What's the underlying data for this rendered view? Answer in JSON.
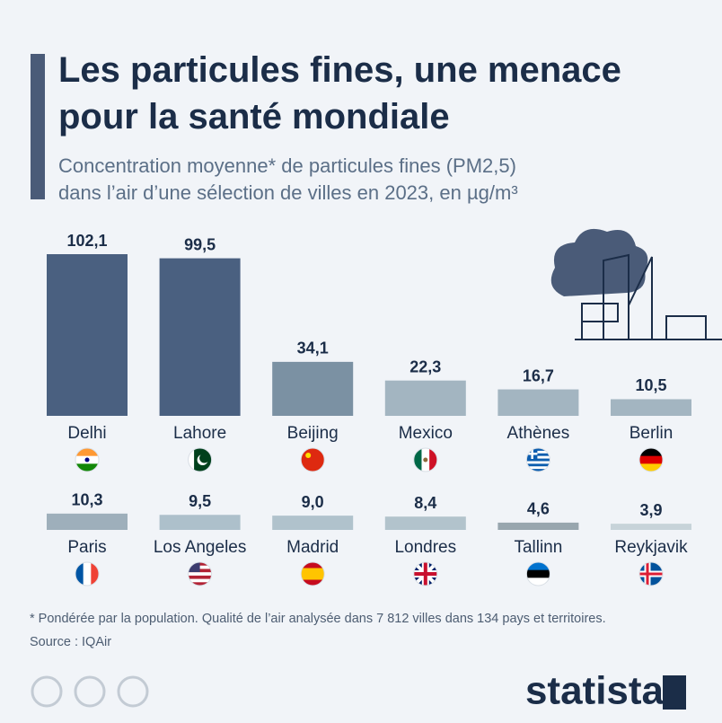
{
  "chart_data": {
    "type": "bar",
    "title": [
      "Les particules fines, une menace",
      "pour la santé mondiale"
    ],
    "subtitle": [
      "Concentration moyenne* de particules fines (PM2,5)",
      "dans l’air d’une sélection de villes en 2023, en µg/m³"
    ],
    "categories": [
      "Delhi",
      "Lahore",
      "Beijing",
      "Mexico",
      "Athènes",
      "Berlin",
      "Paris",
      "Los Angeles",
      "Madrid",
      "Londres",
      "Tallinn",
      "Reykjavik"
    ],
    "values": [
      102.1,
      99.5,
      34.1,
      22.3,
      16.7,
      10.5,
      10.3,
      9.5,
      9.0,
      8.4,
      4.6,
      3.9
    ],
    "value_labels": [
      "102,1",
      "99,5",
      "34,1",
      "22,3",
      "16,7",
      "10,5",
      "10,3",
      "9,5",
      "9,0",
      "8,4",
      "4,6",
      "3,9"
    ],
    "colors": [
      "#4a6080",
      "#4a6080",
      "#7b91a3",
      "#a3b5c1",
      "#a3b5c1",
      "#a3b5c1",
      "#9eafbb",
      "#adc0cb",
      "#b0c2cc",
      "#b2c3cc",
      "#98a6ae",
      "#c7d3d9"
    ],
    "footnote": "* Pondérée par la population. Qualité de l’air analysée dans 7 812 villes dans 134 pays et territoires.",
    "source": "Source : IQAir",
    "logo": "statista"
  }
}
